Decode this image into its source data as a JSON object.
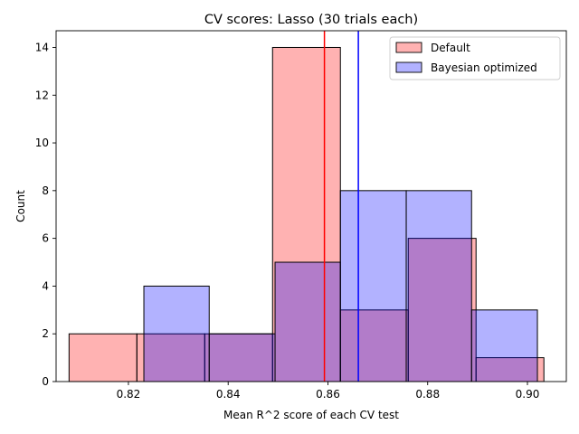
{
  "chart_data": {
    "type": "histogram",
    "title": "CV scores: Lasso (30 trials each)",
    "xlabel": "Mean R^2 score of each CV test",
    "ylabel": "Count",
    "xlim": [
      0.8055,
      0.9078
    ],
    "ylim": [
      0,
      14.7
    ],
    "xticks": [
      0.82,
      0.84,
      0.86,
      0.88,
      0.9
    ],
    "xtick_labels": [
      "0.82",
      "0.84",
      "0.86",
      "0.88",
      "0.90"
    ],
    "yticks": [
      0,
      2,
      4,
      6,
      8,
      10,
      12,
      14
    ],
    "ytick_labels": [
      "0",
      "2",
      "4",
      "6",
      "8",
      "10",
      "12",
      "14"
    ],
    "grid": false,
    "legend_position": "top-right",
    "series": [
      {
        "name": "Default",
        "color": "#ff0000",
        "fill_opacity": 0.3,
        "bin_edges": [
          0.8081,
          0.8217,
          0.8353,
          0.8489,
          0.8625,
          0.8761,
          0.8897,
          0.9033
        ],
        "counts": [
          2,
          2,
          2,
          14,
          3,
          6,
          1
        ],
        "mean": 0.8593
      },
      {
        "name": "Bayesian optimized",
        "color": "#0000ff",
        "fill_opacity": 0.3,
        "bin_edges": [
          0.8231,
          0.8362,
          0.8494,
          0.8625,
          0.8757,
          0.8888,
          0.902
        ],
        "counts": [
          4,
          2,
          5,
          8,
          8,
          3
        ],
        "mean": 0.8661
      }
    ]
  }
}
